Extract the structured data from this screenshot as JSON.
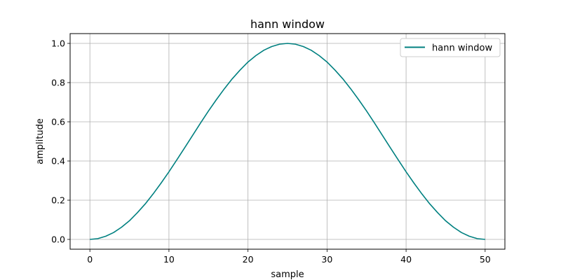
{
  "chart_data": {
    "type": "line",
    "title": "hann window",
    "xlabel": "sample",
    "ylabel": "amplitude",
    "xlim": [
      -2.5,
      52.5
    ],
    "ylim": [
      -0.05,
      1.05
    ],
    "xticks": [
      0,
      10,
      20,
      30,
      40,
      50
    ],
    "yticks": [
      0.0,
      0.2,
      0.4,
      0.6,
      0.8,
      1.0
    ],
    "xtick_labels": [
      "0",
      "10",
      "20",
      "30",
      "40",
      "50"
    ],
    "ytick_labels": [
      "0.0",
      "0.2",
      "0.4",
      "0.6",
      "0.8",
      "1.0"
    ],
    "grid": true,
    "legend": {
      "position": "top-right"
    },
    "series": [
      {
        "name": "hann window",
        "color": "#008080",
        "x": [
          0,
          1,
          2,
          3,
          4,
          5,
          6,
          7,
          8,
          9,
          10,
          11,
          12,
          13,
          14,
          15,
          16,
          17,
          18,
          19,
          20,
          21,
          22,
          23,
          24,
          25,
          26,
          27,
          28,
          29,
          30,
          31,
          32,
          33,
          34,
          35,
          36,
          37,
          38,
          39,
          40,
          41,
          42,
          43,
          44,
          45,
          46,
          47,
          48,
          49,
          50
        ],
        "y": [
          0.0,
          0.004,
          0.016,
          0.035,
          0.062,
          0.095,
          0.136,
          0.181,
          0.232,
          0.287,
          0.345,
          0.406,
          0.468,
          0.531,
          0.594,
          0.655,
          0.713,
          0.768,
          0.819,
          0.864,
          0.905,
          0.938,
          0.965,
          0.984,
          0.996,
          1.0,
          0.996,
          0.984,
          0.965,
          0.938,
          0.905,
          0.864,
          0.819,
          0.768,
          0.713,
          0.655,
          0.594,
          0.531,
          0.468,
          0.406,
          0.345,
          0.287,
          0.232,
          0.181,
          0.136,
          0.095,
          0.062,
          0.035,
          0.016,
          0.004,
          0.0
        ]
      }
    ]
  }
}
